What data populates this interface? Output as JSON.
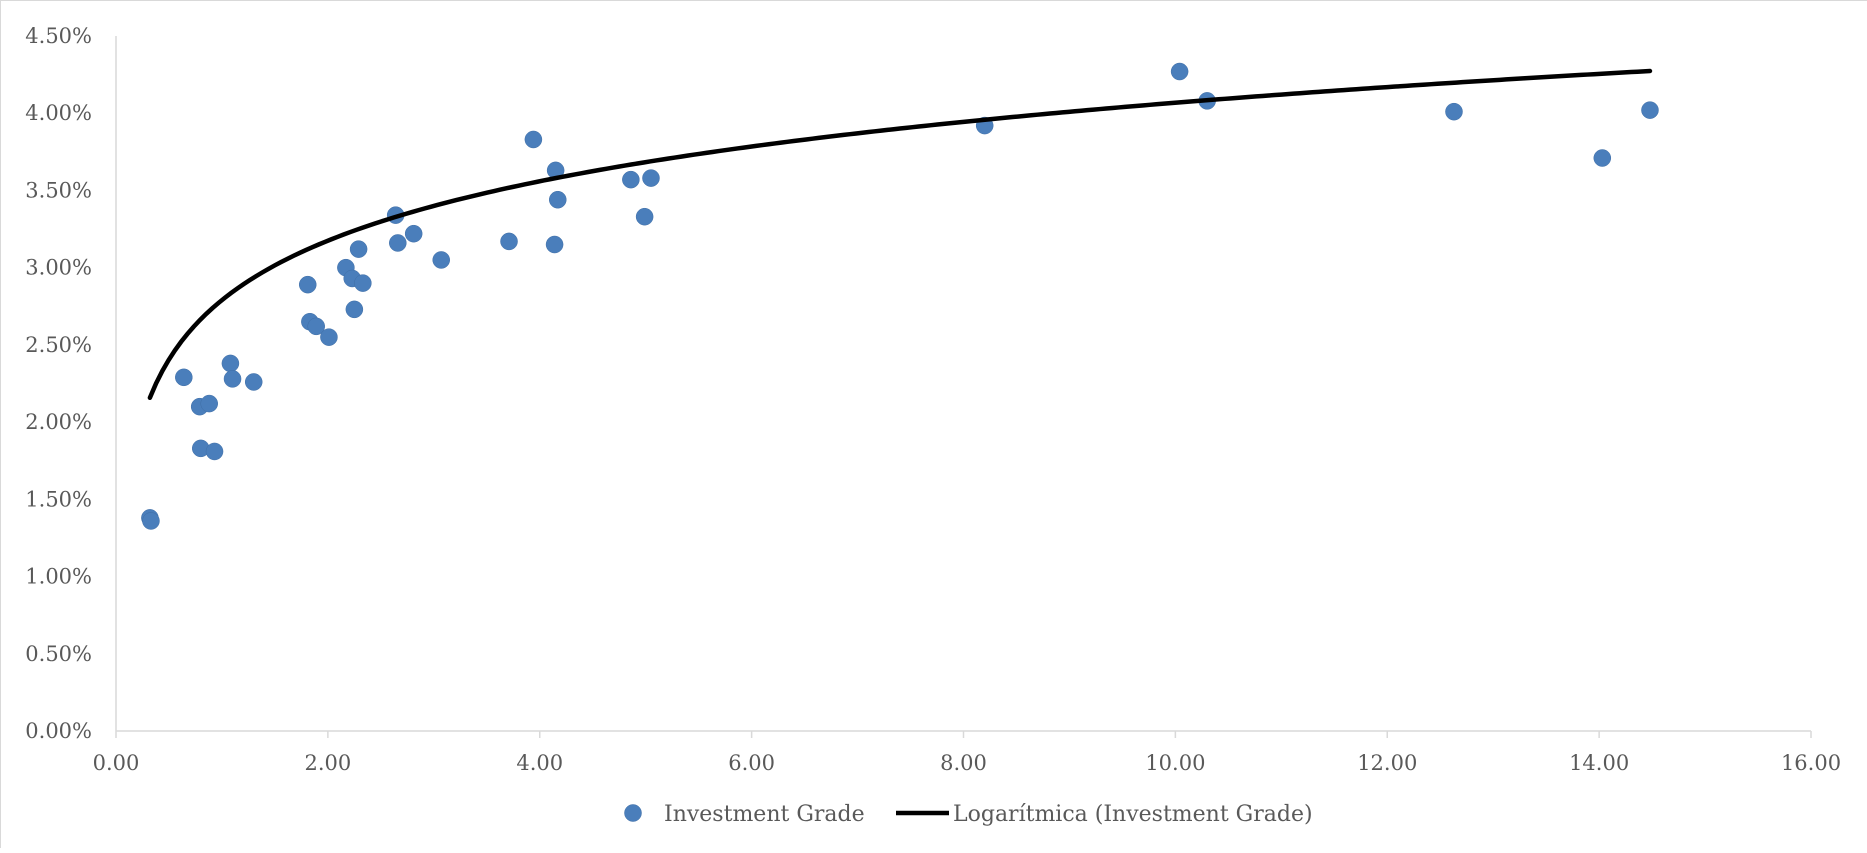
{
  "chart_data": {
    "type": "scatter",
    "title": "",
    "xlabel": "",
    "ylabel": "",
    "xlim": [
      0,
      16
    ],
    "ylim": [
      0,
      0.045
    ],
    "x_ticks": [
      "0.00",
      "2.00",
      "4.00",
      "6.00",
      "8.00",
      "10.00",
      "12.00",
      "14.00",
      "16.00"
    ],
    "y_ticks": [
      "0.00%",
      "0.50%",
      "1.00%",
      "1.50%",
      "2.00%",
      "2.50%",
      "3.00%",
      "3.50%",
      "4.00%",
      "4.50%"
    ],
    "grid": false,
    "legend_position": "bottom",
    "colors": {
      "series": "#4a7ebb",
      "trendline": "#000000",
      "axis": "#d9d9d9",
      "text": "#595959"
    },
    "series": [
      {
        "name": "Investment Grade",
        "points": [
          [
            0.32,
            0.0138
          ],
          [
            0.33,
            0.0136
          ],
          [
            0.64,
            0.0229
          ],
          [
            0.79,
            0.021
          ],
          [
            0.8,
            0.0183
          ],
          [
            0.88,
            0.0212
          ],
          [
            0.93,
            0.0181
          ],
          [
            1.08,
            0.0238
          ],
          [
            1.1,
            0.0228
          ],
          [
            1.3,
            0.0226
          ],
          [
            1.81,
            0.0289
          ],
          [
            1.83,
            0.0265
          ],
          [
            1.89,
            0.0262
          ],
          [
            2.01,
            0.0255
          ],
          [
            2.17,
            0.03
          ],
          [
            2.23,
            0.0293
          ],
          [
            2.25,
            0.0273
          ],
          [
            2.29,
            0.0312
          ],
          [
            2.33,
            0.029
          ],
          [
            2.64,
            0.0334
          ],
          [
            2.66,
            0.0316
          ],
          [
            2.81,
            0.0322
          ],
          [
            3.07,
            0.0305
          ],
          [
            3.71,
            0.0317
          ],
          [
            3.94,
            0.0383
          ],
          [
            4.14,
            0.0315
          ],
          [
            4.15,
            0.0363
          ],
          [
            4.17,
            0.0344
          ],
          [
            4.86,
            0.0357
          ],
          [
            4.99,
            0.0333
          ],
          [
            5.05,
            0.0358
          ],
          [
            8.2,
            0.0392
          ],
          [
            10.04,
            0.0427
          ],
          [
            10.3,
            0.0408
          ],
          [
            12.63,
            0.0401
          ],
          [
            14.03,
            0.0371
          ],
          [
            14.48,
            0.0402
          ]
        ]
      }
    ],
    "trendline": {
      "name": "Logarítmica (Investment Grade)",
      "type": "logarithmic",
      "a": 0.0279,
      "b": 0.00555,
      "x_range": [
        0.32,
        14.48
      ]
    }
  }
}
